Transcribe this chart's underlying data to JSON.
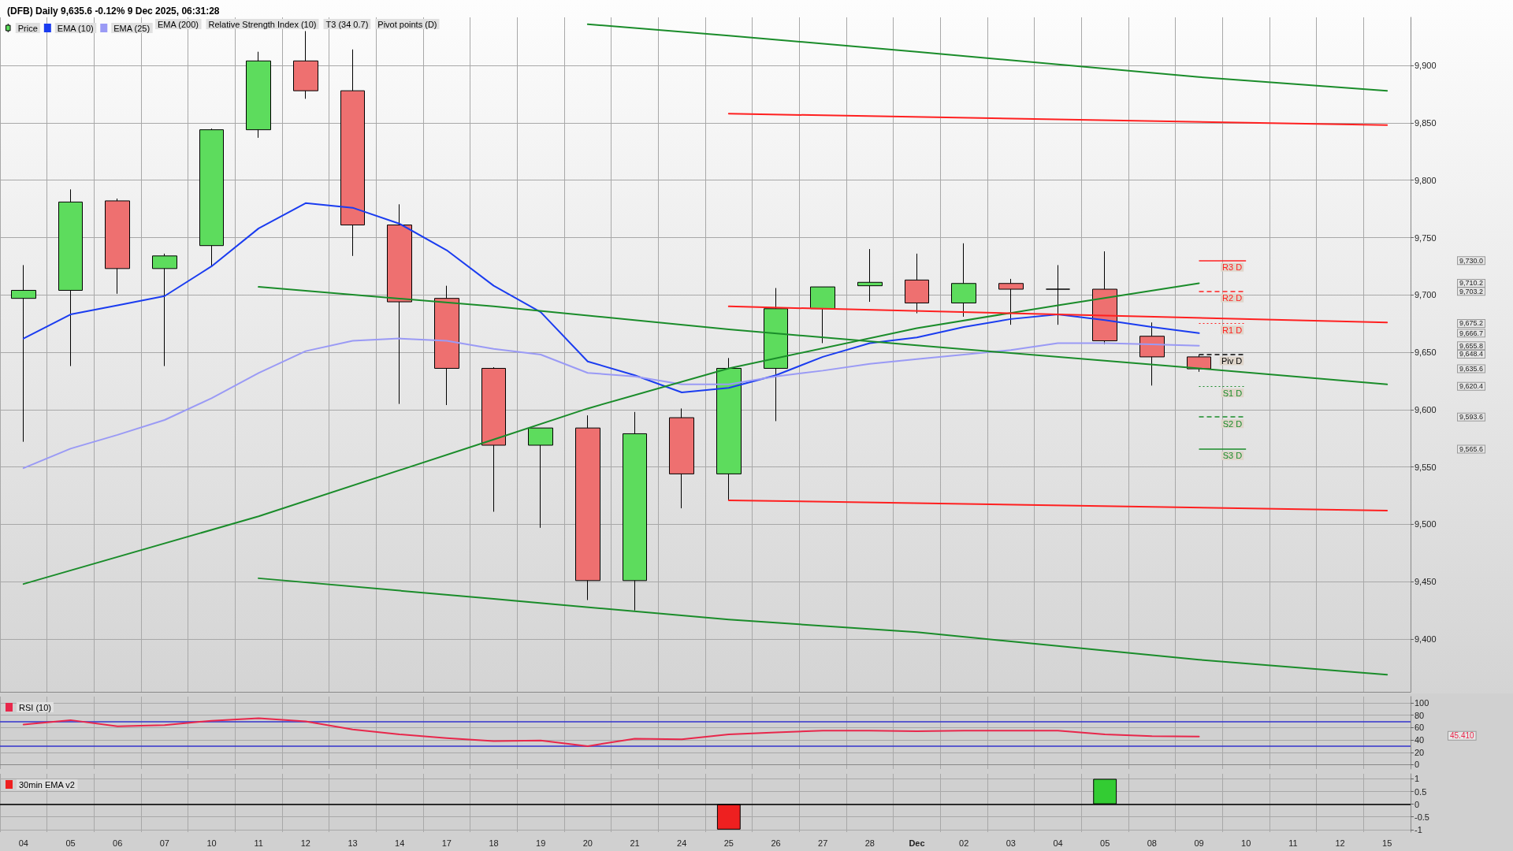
{
  "chart_data": [
    {
      "type": "candlestick",
      "title": "(DFB) Daily 9,635.6 -0.12% 9 Dec 2025, 06:31:28",
      "categories": [
        null,
        null,
        null,
        null,
        null,
        null,
        null,
        null,
        null,
        null,
        null,
        null,
        null,
        null,
        null,
        null,
        null,
        null,
        null,
        null,
        null,
        null,
        null,
        null,
        null,
        null,
        null,
        null,
        null,
        null
      ],
      "series": [
        {
          "name": "Price",
          "color": "#5ddc5d",
          "ohlc": [
            [
              9697,
              9726,
              9572,
              9704
            ],
            [
              9704,
              9792,
              9638,
              9781
            ],
            [
              9782,
              9784,
              9701,
              9723
            ],
            [
              9723,
              9736,
              9638,
              9734
            ],
            [
              9743,
              9845,
              9725,
              9844
            ],
            [
              9844,
              9912,
              9837,
              9904
            ],
            [
              9904,
              9930,
              9871,
              9878
            ],
            [
              9878,
              9914,
              9734,
              9761
            ],
            [
              9761,
              9779,
              9605,
              9694
            ],
            [
              9697,
              9708,
              9604,
              9636
            ],
            [
              9636,
              9637,
              9511,
              9569
            ],
            [
              9569,
              9584,
              9497,
              9584
            ],
            [
              9584,
              9595,
              9434,
              9451
            ],
            [
              9451,
              9598,
              9425,
              9579
            ],
            [
              9593,
              9601,
              9514,
              9544
            ],
            [
              9544,
              9645,
              9521,
              9636
            ],
            [
              9636,
              9706,
              9590,
              9688
            ],
            [
              9688,
              9707,
              9658,
              9707
            ],
            [
              9708,
              9740,
              9694,
              9711
            ],
            [
              9713,
              9736,
              9684,
              9693
            ],
            [
              9693,
              9745,
              9681,
              9710
            ],
            [
              9710,
              9714,
              9674,
              9705
            ],
            [
              9705,
              9726,
              9674,
              9705
            ],
            [
              9705,
              9738,
              9657,
              9660
            ],
            [
              9664,
              9676,
              9621,
              9646
            ],
            [
              9646,
              9648,
              9633,
              9635.6
            ],
            null,
            null,
            null,
            null
          ],
          "colors": [
            "#5ddc5d",
            "#5ddc5d",
            "#ee7070",
            "#5ddc5d",
            "#5ddc5d",
            "#5ddc5d",
            "#ee7070",
            "#ee7070",
            "#ee7070",
            "#ee7070",
            "#ee7070",
            "#5ddc5d",
            "#ee7070",
            "#5ddc5d",
            "#ee7070",
            "#5ddc5d",
            "#5ddc5d",
            "#5ddc5d",
            "#5ddc5d",
            "#ee7070",
            "#5ddc5d",
            "#ee7070",
            "#000000",
            "#ee7070",
            "#ee7070",
            "#ee7070",
            null,
            null,
            null,
            null
          ]
        },
        {
          "name": "EMA (10)",
          "type": "line",
          "color": "#1a3cf0",
          "values": [
            9662,
            9683,
            9691,
            9699,
            9725,
            9758,
            9780,
            9776,
            9762,
            9739,
            9708,
            9685,
            9642,
            9630,
            9615,
            9619,
            9630,
            9646,
            9658,
            9663,
            9672,
            9679,
            9683,
            9678,
            9672,
            9666.7,
            null,
            null,
            null,
            null
          ]
        },
        {
          "name": "EMA (25)",
          "type": "line",
          "color": "#9a9af5",
          "values": [
            9549,
            9566,
            9578,
            9591,
            9610,
            9632,
            9651,
            9660,
            9662,
            9660,
            9653,
            9648,
            9632,
            9629,
            9622,
            9622,
            9629,
            9634,
            9640,
            9644,
            9648,
            9652,
            9658,
            9658,
            9657,
            9655.8,
            null,
            null,
            null,
            null
          ]
        },
        {
          "type": "line",
          "color": "#1a8c2a",
          "values": [
            null,
            null,
            null,
            null,
            null,
            null,
            null,
            null,
            null,
            null,
            null,
            null,
            9936,
            null,
            null,
            9926,
            null,
            null,
            null,
            9912,
            null,
            null,
            null,
            null,
            null,
            9890,
            null,
            null,
            null,
            9878
          ]
        },
        {
          "type": "line",
          "color": "#1a8c2a",
          "values": [
            null,
            null,
            null,
            null,
            null,
            9453,
            null,
            null,
            null,
            null,
            9435,
            null,
            null,
            null,
            null,
            9417,
            null,
            null,
            null,
            9406,
            null,
            null,
            null,
            null,
            null,
            9382,
            null,
            null,
            null,
            9369
          ]
        },
        {
          "type": "line",
          "color": "#1a8c2a",
          "values": [
            9448,
            null,
            null,
            null,
            null,
            9507,
            null,
            null,
            null,
            null,
            9574,
            null,
            9601,
            null,
            null,
            9636,
            null,
            null,
            null,
            9671,
            null,
            null,
            9691,
            null,
            null,
            9710.2,
            null,
            null,
            null,
            null
          ]
        },
        {
          "type": "line",
          "color": "#1a8c2a",
          "values": [
            null,
            null,
            null,
            null,
            null,
            9707,
            null,
            null,
            null,
            null,
            9690,
            null,
            null,
            null,
            null,
            9670,
            null,
            null,
            null,
            9656,
            null,
            null,
            null,
            null,
            null,
            9636,
            null,
            null,
            null,
            9622
          ]
        },
        {
          "type": "line",
          "color": "#ff2020",
          "values": [
            null,
            null,
            null,
            null,
            null,
            null,
            null,
            null,
            null,
            null,
            null,
            null,
            null,
            null,
            null,
            9858,
            null,
            null,
            null,
            null,
            null,
            null,
            null,
            null,
            null,
            null,
            null,
            null,
            null,
            9848
          ]
        },
        {
          "type": "line",
          "color": "#ff2020",
          "values": [
            null,
            null,
            null,
            null,
            null,
            null,
            null,
            null,
            null,
            null,
            null,
            null,
            null,
            null,
            null,
            9690,
            null,
            null,
            null,
            null,
            null,
            null,
            null,
            null,
            null,
            null,
            null,
            null,
            null,
            9676
          ]
        },
        {
          "type": "line",
          "color": "#ff2020",
          "values": [
            null,
            null,
            null,
            null,
            null,
            null,
            null,
            null,
            null,
            null,
            null,
            null,
            null,
            null,
            null,
            9521,
            null,
            null,
            null,
            null,
            null,
            null,
            null,
            null,
            null,
            null,
            null,
            null,
            null,
            9512
          ]
        }
      ],
      "ref_lines": [
        {
          "axis": "y",
          "value": 9730.0,
          "label": "R3 D",
          "color": "#ff2020",
          "line_style": "solid"
        },
        {
          "axis": "y",
          "value": 9703.2,
          "label": "R2 D",
          "color": "#ff2020",
          "line_style": "dashed"
        },
        {
          "axis": "y",
          "value": 9675.2,
          "label": "R1 D",
          "color": "#ff2020",
          "line_style": "dotted"
        },
        {
          "axis": "y",
          "value": 9648.4,
          "label": "Piv D",
          "color": "#000000",
          "line_style": "dashed"
        },
        {
          "axis": "y",
          "value": 9620.4,
          "label": "S1 D",
          "color": "#1a8c2a",
          "line_style": "dotted"
        },
        {
          "axis": "y",
          "value": 9593.6,
          "label": "S2 D",
          "color": "#1a8c2a",
          "line_style": "dashed"
        },
        {
          "axis": "y",
          "value": 9565.6,
          "label": "S3 D",
          "color": "#1a8c2a",
          "line_style": "solid"
        }
      ],
      "ylim": [
        9354,
        9942
      ],
      "yticks": [
        {
          "value": 9400,
          "label": "9,400"
        },
        {
          "value": 9450,
          "label": "9,450"
        },
        {
          "value": 9500,
          "label": "9,500"
        },
        {
          "value": 9550,
          "label": "9,550"
        },
        {
          "value": 9600,
          "label": "9,600"
        },
        {
          "value": 9650,
          "label": "9,650"
        },
        {
          "value": 9700,
          "label": "9,700"
        },
        {
          "value": 9750,
          "label": "9,750"
        },
        {
          "value": 9800,
          "label": "9,800"
        },
        {
          "value": 9850,
          "label": "9,850"
        },
        {
          "value": 9900,
          "label": "9,900"
        }
      ],
      "y2lim": [
        9354,
        9942
      ],
      "y2ticks": [
        {
          "value": 9730.0,
          "label": "9,730.0"
        },
        {
          "value": 9710.2,
          "label": "9,710.2"
        },
        {
          "value": 9703.2,
          "label": "9,703.2"
        },
        {
          "value": 9675.2,
          "label": "9,675.2"
        },
        {
          "value": 9666.7,
          "label": "9,666.7"
        },
        {
          "value": 9655.8,
          "label": "9,655.8"
        },
        {
          "value": 9648.4,
          "label": "9,648.4"
        },
        {
          "value": 9635.6,
          "label": "9,635.6"
        },
        {
          "value": 9620.4,
          "label": "9,620.4"
        },
        {
          "value": 9593.6,
          "label": "9,593.6"
        },
        {
          "value": 9565.6,
          "label": "9,565.6"
        }
      ],
      "annotations": [
        "EMA (200)",
        "Relative Strength Index (10)",
        "T3 (34 0.7)",
        "Pivot points (D)"
      ],
      "grid": true,
      "legend": "top left",
      "tick_labels": "y"
    },
    {
      "type": "line",
      "categories": [
        null,
        null,
        null,
        null,
        null,
        null,
        null,
        null,
        null,
        null,
        null,
        null,
        null,
        null,
        null,
        null,
        null,
        null,
        null,
        null,
        null,
        null,
        null,
        null,
        null,
        null,
        null,
        null,
        null,
        null
      ],
      "series": [
        {
          "name": "RSI (10)",
          "color": "#e8274b",
          "values": [
            65,
            72,
            62,
            64,
            71,
            75,
            70,
            57,
            49,
            43,
            38,
            39,
            30,
            42,
            41,
            49,
            52,
            55,
            55,
            54,
            55,
            55,
            55,
            49,
            46,
            45.41,
            null,
            null,
            null,
            null
          ]
        }
      ],
      "ref_lines": [
        {
          "axis": "y",
          "value": 70,
          "color": "#3333cc"
        },
        {
          "axis": "y",
          "value": 30,
          "color": "#3333cc"
        }
      ],
      "ylim": [
        -7,
        110
      ],
      "yticks": [
        0,
        20,
        40,
        60,
        80,
        100
      ],
      "annotations": [
        "45.410"
      ],
      "grid": true,
      "legend": "top left",
      "tick_labels": "y"
    },
    {
      "type": "bar",
      "categories": [
        "04",
        "05",
        "06",
        "07",
        "10",
        "11",
        "12",
        "13",
        "14",
        "17",
        "18",
        "19",
        "20",
        "21",
        "24",
        "25",
        "26",
        "27",
        "28",
        "Dec",
        "02",
        "03",
        "04",
        "05",
        "08",
        "09",
        "10",
        "11",
        "12",
        "15"
      ],
      "series": [
        {
          "name": "30min EMA v2",
          "color": "#ee2020",
          "values": [
            0,
            0,
            0,
            0,
            0,
            0,
            0,
            0,
            0,
            0,
            0,
            0,
            0,
            0,
            0,
            -1,
            0,
            0,
            0,
            0,
            0,
            0,
            0,
            1,
            0,
            0,
            null,
            null,
            null,
            null
          ],
          "colors": [
            "#888888",
            "#888888",
            "#888888",
            "#888888",
            "#888888",
            "#888888",
            "#888888",
            "#888888",
            "#888888",
            "#888888",
            "#888888",
            "#888888",
            "#888888",
            "#888888",
            "#888888",
            "#ee2020",
            "#888888",
            "#888888",
            "#888888",
            "#888888",
            "#888888",
            "#888888",
            "#888888",
            "#33cc33",
            "#888888",
            "#888888",
            null,
            null,
            null,
            null
          ]
        }
      ],
      "ref_lines": [
        {
          "axis": "y",
          "value": 0,
          "color": "#000000"
        }
      ],
      "ylim": [
        -1.1,
        1.2
      ],
      "yticks": [
        -1,
        -0.5,
        0,
        0.5,
        1
      ],
      "grid": true,
      "legend": "top left"
    }
  ]
}
